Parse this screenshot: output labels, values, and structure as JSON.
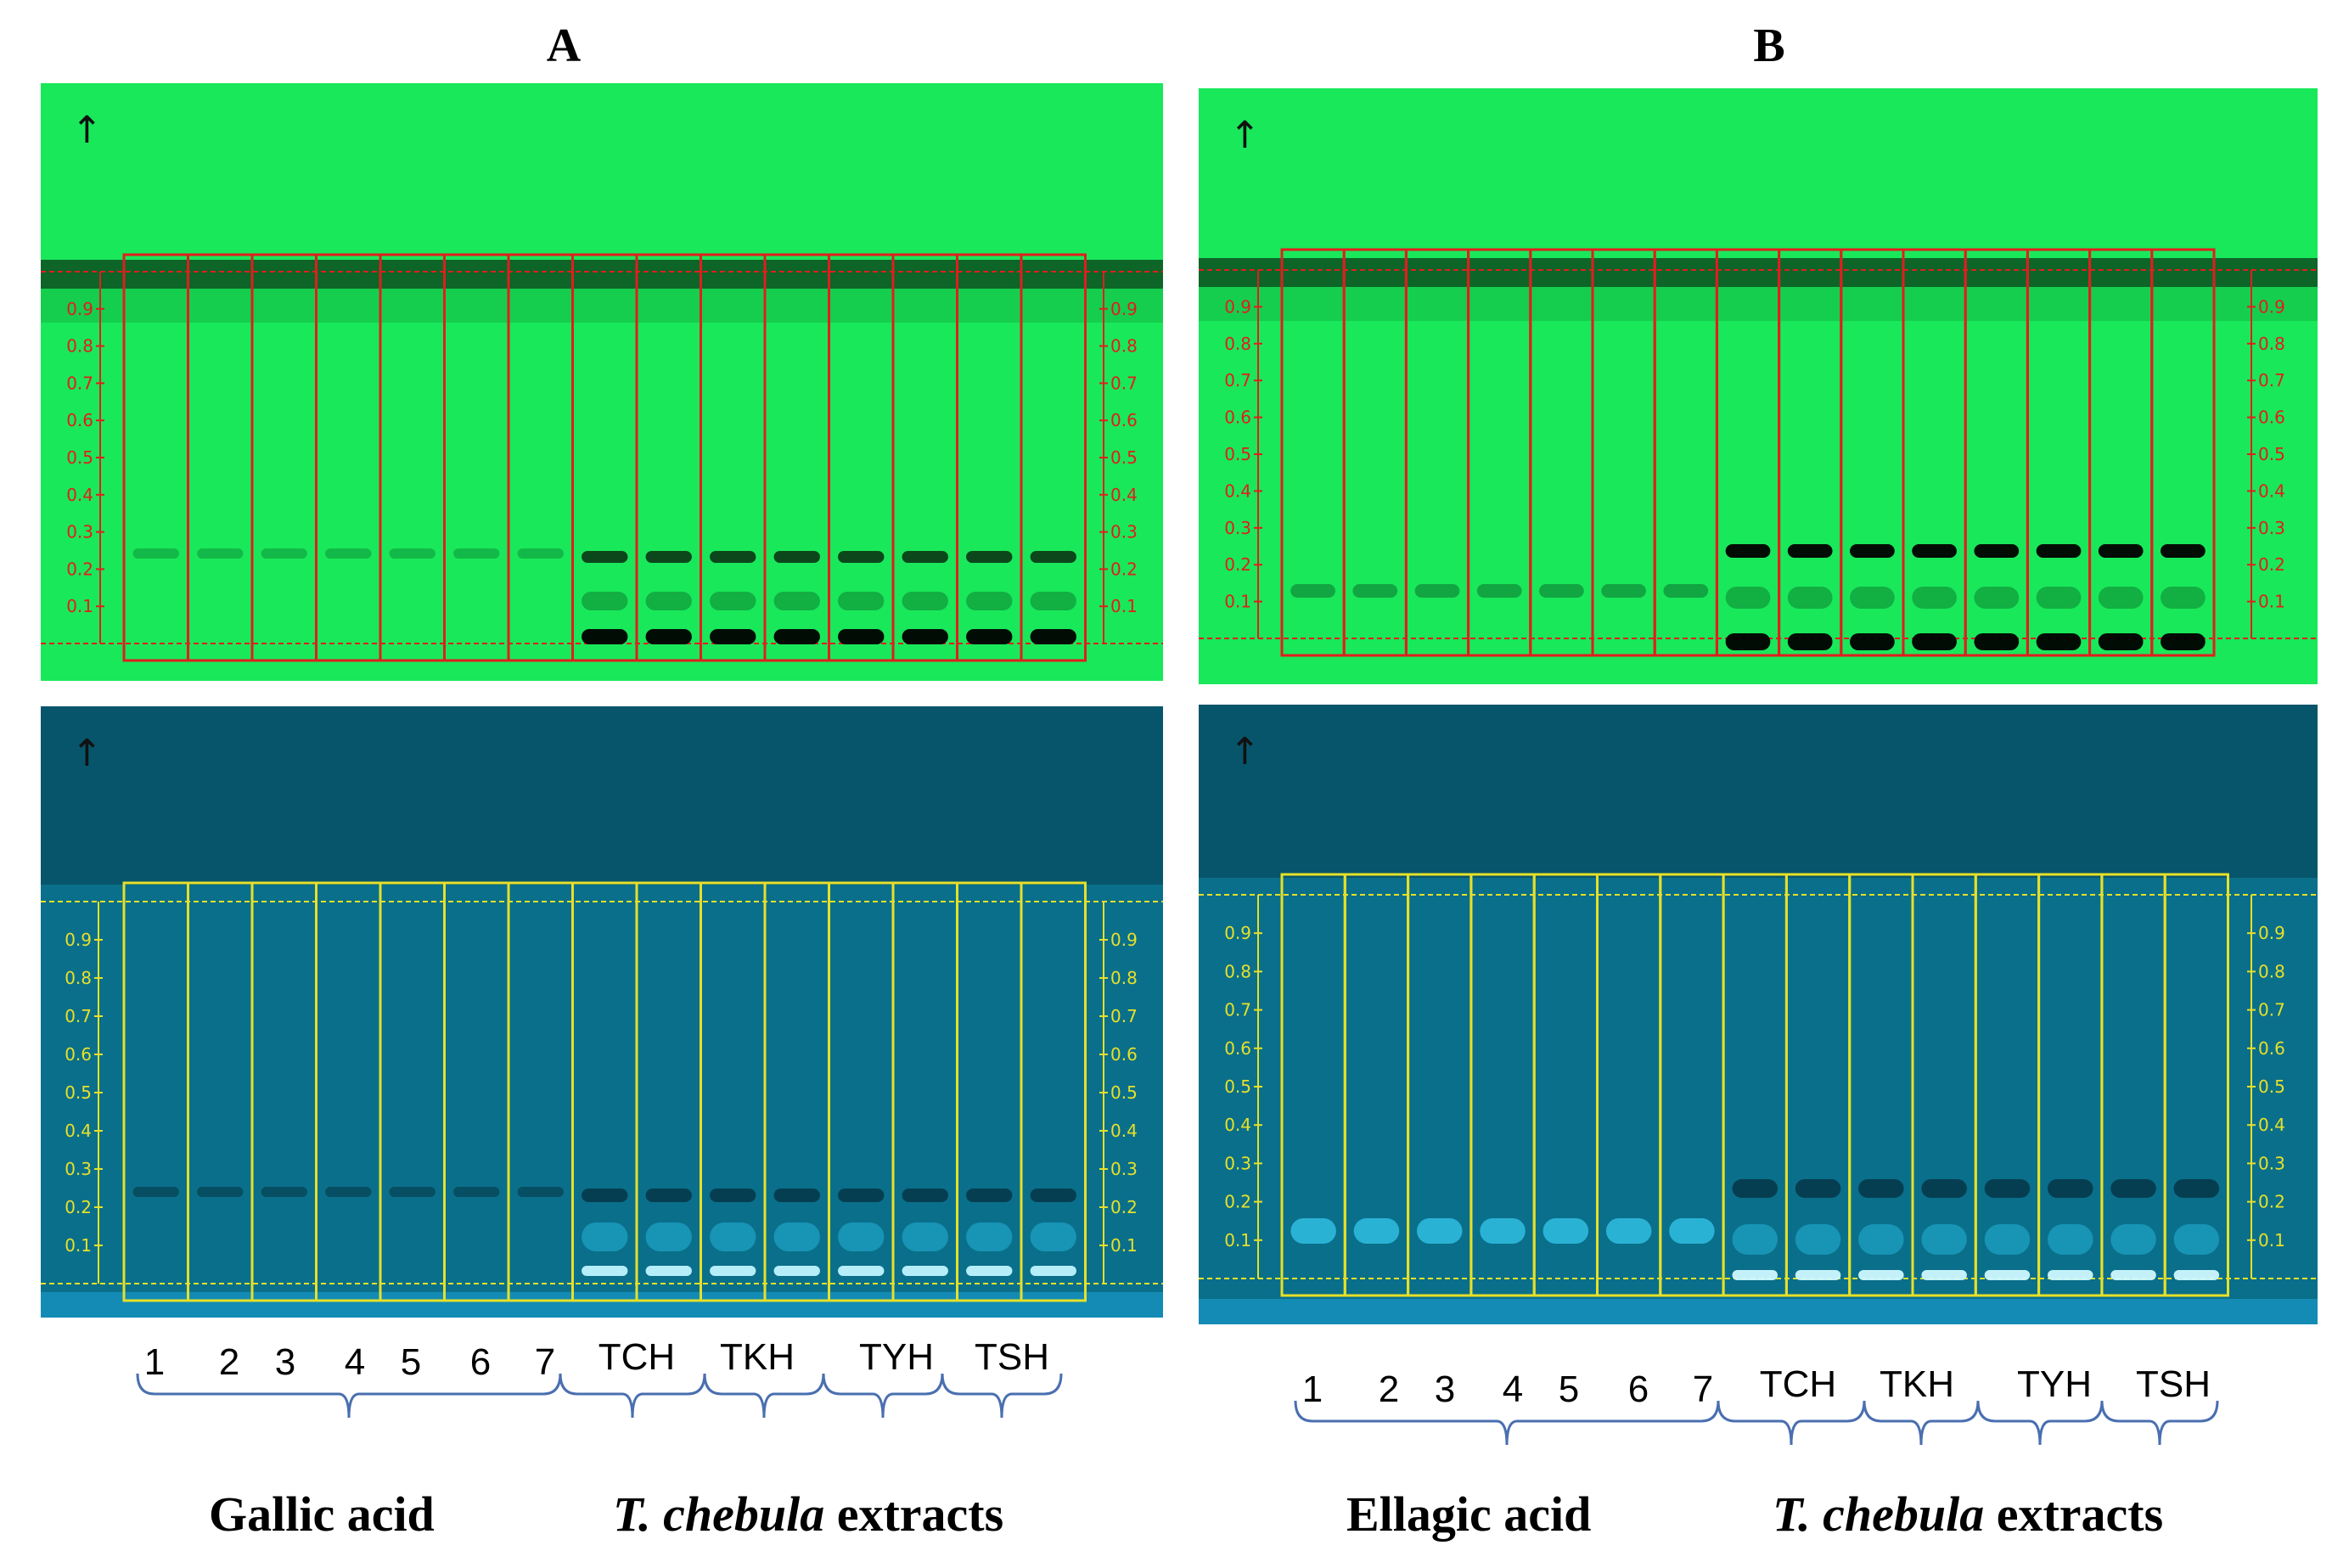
{
  "panels": [
    {
      "letter": "A",
      "standard": "Gallic acid",
      "standard_lanes": [
        "1",
        "2",
        "3",
        "4",
        "5",
        "6",
        "7"
      ],
      "sample_lanes": [
        "TCH",
        "TKH",
        "TYH",
        "TSH"
      ],
      "extract_italic": "T. chebula",
      "extract_rest": " extracts"
    },
    {
      "letter": "B",
      "standard": "Ellagic acid",
      "standard_lanes": [
        "1",
        "2",
        "3",
        "4",
        "5",
        "6",
        "7"
      ],
      "sample_lanes": [
        "TCH",
        "TKH",
        "TYH",
        "TSH"
      ],
      "extract_italic": "T. chebula",
      "extract_rest": " extracts"
    }
  ],
  "rf_scale": [
    "0.1",
    "0.2",
    "0.3",
    "0.4",
    "0.5",
    "0.6",
    "0.7",
    "0.8",
    "0.9"
  ],
  "plates": {
    "uv254": {
      "background": "#19e85a",
      "track_color": "#e01e1e",
      "scale_color": "#e01e1e"
    },
    "uv366": {
      "background": "#0a6f8a",
      "track_color": "#e6e02a",
      "scale_color": "#e6e02a"
    }
  }
}
